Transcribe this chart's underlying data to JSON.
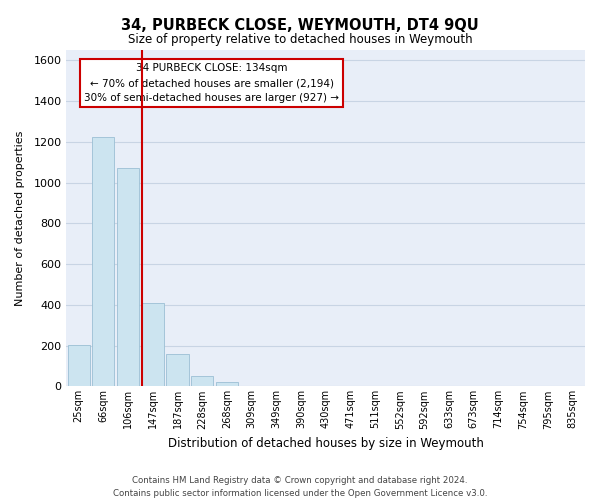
{
  "title": "34, PURBECK CLOSE, WEYMOUTH, DT4 9QU",
  "subtitle": "Size of property relative to detached houses in Weymouth",
  "xlabel": "Distribution of detached houses by size in Weymouth",
  "ylabel": "Number of detached properties",
  "footer_line1": "Contains HM Land Registry data © Crown copyright and database right 2024.",
  "footer_line2": "Contains public sector information licensed under the Open Government Licence v3.0.",
  "bar_labels": [
    "25sqm",
    "66sqm",
    "106sqm",
    "147sqm",
    "187sqm",
    "228sqm",
    "268sqm",
    "309sqm",
    "349sqm",
    "390sqm",
    "430sqm",
    "471sqm",
    "511sqm",
    "552sqm",
    "592sqm",
    "633sqm",
    "673sqm",
    "714sqm",
    "754sqm",
    "795sqm",
    "835sqm"
  ],
  "bar_values": [
    205,
    1225,
    1070,
    410,
    160,
    52,
    20,
    0,
    0,
    0,
    0,
    0,
    0,
    0,
    0,
    0,
    0,
    0,
    0,
    0,
    0
  ],
  "bar_color": "#cce4f0",
  "bar_edge_color": "#9bbfd4",
  "vline_color": "#cc0000",
  "vline_pos": 2.57,
  "ylim_max": 1650,
  "annotation_text_line1": "34 PURBECK CLOSE: 134sqm",
  "annotation_text_line2": "← 70% of detached houses are smaller (2,194)",
  "annotation_text_line3": "30% of semi-detached houses are larger (927) →",
  "grid_color": "#c8d4e4",
  "background_color": "#e8eef8"
}
